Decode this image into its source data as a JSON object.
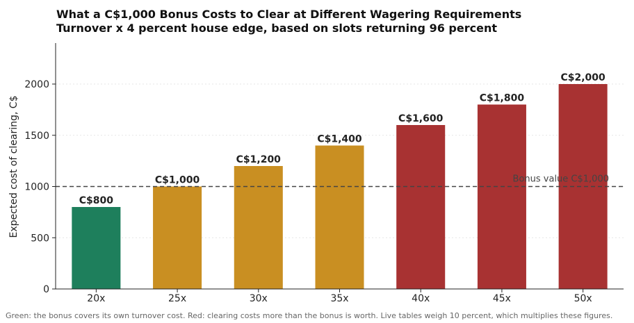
{
  "title_line1": "What a C$1,000 Bonus Costs to Clear at Different Wagering Requirements",
  "title_line2": "Turnover x 4 percent house edge, based on slots returning 96 percent",
  "footnote": "Green: the bonus covers its own turnover cost. Red: clearing costs more than the bonus is worth. Live tables weigh 10 percent, which multiplies these figures.",
  "colors": {
    "green": "#1e7f5c",
    "gold": "#c98f22",
    "red": "#a83232"
  },
  "chart_data": {
    "type": "bar",
    "title": "What a C$1,000 Bonus Costs to Clear at Different Wagering Requirements",
    "subtitle": "Turnover x 4 percent house edge, based on slots returning 96 percent",
    "categories": [
      "20x",
      "25x",
      "30x",
      "35x",
      "40x",
      "45x",
      "50x"
    ],
    "values": [
      800,
      1000,
      1200,
      1400,
      1600,
      1800,
      2000
    ],
    "data_labels": [
      "C$800",
      "C$1,000",
      "C$1,200",
      "C$1,400",
      "C$1,600",
      "C$1,800",
      "C$2,000"
    ],
    "bar_colors": [
      "green",
      "gold",
      "gold",
      "gold",
      "red",
      "red",
      "red"
    ],
    "xlabel": "",
    "ylabel": "Expected cost of clearing, C$",
    "ylim": [
      0,
      2400
    ],
    "yticks": [
      0,
      500,
      1000,
      1500,
      2000
    ],
    "grid": true,
    "reference_line": {
      "value": 1000,
      "label": "Bonus value C$1,000",
      "style": "dashed"
    }
  }
}
